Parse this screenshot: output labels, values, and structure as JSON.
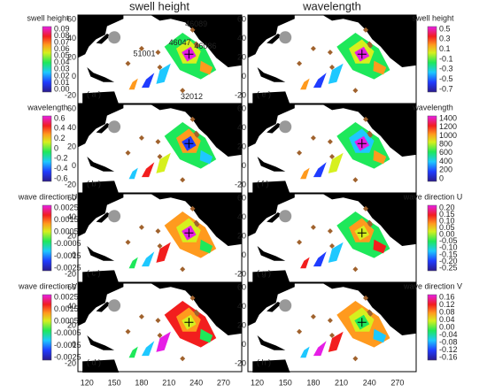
{
  "column_titles": [
    "swell height",
    "wavelength"
  ],
  "x_ticks": [
    "120",
    "150",
    "180",
    "210",
    "240",
    "270"
  ],
  "y_ticks": [
    "60",
    "40",
    "20",
    "0",
    "-20"
  ],
  "panels": [
    {
      "label": "( a )"
    },
    {
      "label": "( b )"
    },
    {
      "label": "( c )"
    },
    {
      "label": "( d )"
    },
    {
      "label": "( e )"
    },
    {
      "label": "( f )"
    },
    {
      "label": "( g )"
    },
    {
      "label": "( h )"
    }
  ],
  "buoys": [
    {
      "id": "46089"
    },
    {
      "id": "46047"
    },
    {
      "id": "46086"
    },
    {
      "id": "51001"
    },
    {
      "id": "32012"
    }
  ],
  "colorbars_left": [
    {
      "title": "swell height",
      "ticks": [
        "0.09",
        "0.08",
        "0.07",
        "0.06",
        "0.05",
        "0.04",
        "0.03",
        "0.02",
        "0.01",
        "0.00"
      ]
    },
    {
      "title": "wavelength",
      "ticks": [
        "0.6",
        "0.4",
        "0.2",
        "0",
        "-0.2",
        "-0.4",
        "-0.6"
      ]
    },
    {
      "title": "wave direction U",
      "ticks": [
        "0.0025",
        "0.0015",
        "0.0005",
        "-0.0005",
        "-0.0015",
        "-0.0025"
      ]
    },
    {
      "title": "wave direction V",
      "ticks": [
        "0.0025",
        "0.0015",
        "0.0005",
        "-0.0005",
        "-0.0015",
        "-0.0025"
      ]
    }
  ],
  "colorbars_right": [
    {
      "title": "swell height",
      "ticks": [
        "0.5",
        "0.3",
        "0.1",
        "-0.1",
        "-0.3",
        "-0.5",
        "-0.7"
      ]
    },
    {
      "title": "wavelength",
      "ticks": [
        "1400",
        "1200",
        "1000",
        "800",
        "600",
        "400",
        "200",
        "0"
      ]
    },
    {
      "title": "wave direction U",
      "ticks": [
        "0.20",
        "0.15",
        "0.10",
        "0.05",
        "0.00",
        "-0.05",
        "-0.10",
        "-0.15",
        "-0.20",
        "-0.25"
      ]
    },
    {
      "title": "wave direction V",
      "ticks": [
        "0.16",
        "0.12",
        "0.08",
        "0.04",
        "0.00",
        "-0.04",
        "-0.08",
        "-0.12",
        "-0.16"
      ]
    }
  ]
}
